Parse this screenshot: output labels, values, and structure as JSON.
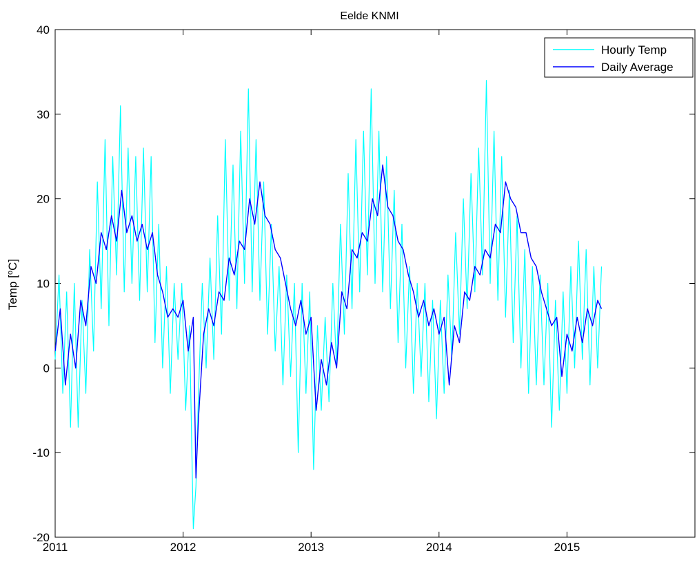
{
  "chart_data": {
    "type": "line",
    "title": "Eelde KNMI",
    "ylabel_prefix": "Temp [",
    "ylabel_sup": "o",
    "ylabel_suffix": "C]",
    "xlabel": "",
    "xlim": [
      2011,
      2016
    ],
    "ylim": [
      -20,
      40
    ],
    "x_ticks": [
      2011,
      2012,
      2013,
      2014,
      2015
    ],
    "x_tick_labels": [
      "2011",
      "2012",
      "2013",
      "2014",
      "2015"
    ],
    "y_ticks": [
      -20,
      -10,
      0,
      10,
      20,
      30,
      40
    ],
    "y_tick_labels": [
      "-20",
      "-10",
      "0",
      "10",
      "20",
      "30",
      "40"
    ],
    "grid": false,
    "legend_position": "top-right",
    "series": [
      {
        "name": "Hourly Temp",
        "color": "#00ffff",
        "x": [
          2011.0,
          2011.03,
          2011.06,
          2011.09,
          2011.12,
          2011.15,
          2011.18,
          2011.21,
          2011.24,
          2011.27,
          2011.3,
          2011.33,
          2011.36,
          2011.39,
          2011.42,
          2011.45,
          2011.48,
          2011.51,
          2011.54,
          2011.57,
          2011.6,
          2011.63,
          2011.66,
          2011.69,
          2011.72,
          2011.75,
          2011.78,
          2011.81,
          2011.84,
          2011.87,
          2011.9,
          2011.93,
          2011.96,
          2011.99,
          2012.02,
          2012.05,
          2012.08,
          2012.1,
          2012.12,
          2012.15,
          2012.18,
          2012.21,
          2012.24,
          2012.27,
          2012.3,
          2012.33,
          2012.36,
          2012.39,
          2012.42,
          2012.45,
          2012.48,
          2012.51,
          2012.54,
          2012.57,
          2012.6,
          2012.63,
          2012.66,
          2012.69,
          2012.72,
          2012.75,
          2012.78,
          2012.81,
          2012.84,
          2012.87,
          2012.9,
          2012.93,
          2012.96,
          2012.99,
          2013.02,
          2013.05,
          2013.08,
          2013.11,
          2013.14,
          2013.17,
          2013.2,
          2013.23,
          2013.26,
          2013.29,
          2013.32,
          2013.35,
          2013.38,
          2013.41,
          2013.44,
          2013.47,
          2013.5,
          2013.53,
          2013.56,
          2013.59,
          2013.62,
          2013.65,
          2013.68,
          2013.71,
          2013.74,
          2013.77,
          2013.8,
          2013.83,
          2013.86,
          2013.89,
          2013.92,
          2013.95,
          2013.98,
          2014.01,
          2014.04,
          2014.07,
          2014.1,
          2014.13,
          2014.16,
          2014.19,
          2014.22,
          2014.25,
          2014.28,
          2014.31,
          2014.34,
          2014.37,
          2014.4,
          2014.43,
          2014.46,
          2014.49,
          2014.52,
          2014.55,
          2014.58,
          2014.61,
          2014.64,
          2014.67,
          2014.7,
          2014.73,
          2014.76,
          2014.79,
          2014.82,
          2014.85,
          2014.88,
          2014.91,
          2014.94,
          2014.97,
          2015.0,
          2015.03,
          2015.06,
          2015.09,
          2015.12,
          2015.15,
          2015.18,
          2015.21,
          2015.24,
          2015.27
        ],
        "y": [
          1,
          11,
          -3,
          9,
          -7,
          10,
          -7,
          8,
          -3,
          14,
          2,
          22,
          7,
          27,
          5,
          25,
          11,
          31,
          9,
          26,
          10,
          25,
          8,
          26,
          9,
          25,
          3,
          17,
          0,
          12,
          -3,
          10,
          1,
          10,
          -5,
          5,
          -19,
          -14,
          -3,
          10,
          0,
          13,
          1,
          18,
          4,
          27,
          8,
          24,
          7,
          28,
          10,
          33,
          9,
          27,
          8,
          22,
          4,
          17,
          2,
          12,
          -2,
          11,
          -1,
          10,
          -10,
          10,
          -3,
          9,
          -12,
          5,
          -5,
          6,
          -4,
          10,
          0,
          17,
          4,
          23,
          7,
          27,
          9,
          28,
          11,
          33,
          10,
          28,
          9,
          25,
          7,
          21,
          3,
          17,
          0,
          12,
          -3,
          10,
          -1,
          10,
          -4,
          8,
          -6,
          8,
          -3,
          11,
          1,
          16,
          4,
          20,
          7,
          23,
          9,
          26,
          11,
          34,
          10,
          28,
          8,
          25,
          6,
          21,
          3,
          18,
          0,
          14,
          -3,
          12,
          -2,
          11,
          -2,
          10,
          -7,
          8,
          -5,
          9,
          -3,
          12,
          0,
          15,
          1,
          14,
          -2,
          12,
          0,
          12
        ],
        "_note": ""
      },
      {
        "name": "Daily Average",
        "color": "#0000ff",
        "x": [
          2011.0,
          2011.04,
          2011.08,
          2011.12,
          2011.16,
          2011.2,
          2011.24,
          2011.28,
          2011.32,
          2011.36,
          2011.4,
          2011.44,
          2011.48,
          2011.52,
          2011.56,
          2011.6,
          2011.64,
          2011.68,
          2011.72,
          2011.76,
          2011.8,
          2011.84,
          2011.88,
          2011.92,
          2011.96,
          2012.0,
          2012.04,
          2012.08,
          2012.1,
          2012.12,
          2012.16,
          2012.2,
          2012.24,
          2012.28,
          2012.32,
          2012.36,
          2012.4,
          2012.44,
          2012.48,
          2012.52,
          2012.56,
          2012.6,
          2012.64,
          2012.68,
          2012.72,
          2012.76,
          2012.8,
          2012.84,
          2012.88,
          2012.92,
          2012.96,
          2013.0,
          2013.04,
          2013.08,
          2013.12,
          2013.16,
          2013.2,
          2013.24,
          2013.28,
          2013.32,
          2013.36,
          2013.4,
          2013.44,
          2013.48,
          2013.52,
          2013.56,
          2013.6,
          2013.64,
          2013.68,
          2013.72,
          2013.76,
          2013.8,
          2013.84,
          2013.88,
          2013.92,
          2013.96,
          2014.0,
          2014.04,
          2014.08,
          2014.12,
          2014.16,
          2014.2,
          2014.24,
          2014.28,
          2014.32,
          2014.36,
          2014.4,
          2014.44,
          2014.48,
          2014.52,
          2014.56,
          2014.6,
          2014.64,
          2014.68,
          2014.72,
          2014.76,
          2014.8,
          2014.84,
          2014.88,
          2014.92,
          2014.96,
          2015.0,
          2015.04,
          2015.08,
          2015.12,
          2015.16,
          2015.2,
          2015.24,
          2015.27
        ],
        "y": [
          2,
          7,
          -2,
          4,
          0,
          8,
          5,
          12,
          10,
          16,
          14,
          18,
          15,
          21,
          16,
          18,
          15,
          17,
          14,
          16,
          11,
          9,
          6,
          7,
          6,
          8,
          2,
          6,
          -13,
          -6,
          4,
          7,
          5,
          9,
          8,
          13,
          11,
          15,
          14,
          20,
          17,
          22,
          18,
          17,
          14,
          13,
          10,
          7,
          5,
          8,
          4,
          6,
          -5,
          1,
          -2,
          3,
          0,
          9,
          7,
          14,
          13,
          16,
          15,
          20,
          18,
          24,
          19,
          18,
          15,
          14,
          11,
          9,
          6,
          8,
          5,
          7,
          4,
          6,
          -2,
          5,
          3,
          9,
          8,
          12,
          11,
          14,
          13,
          17,
          16,
          22,
          20,
          19,
          16,
          16,
          13,
          12,
          9,
          7,
          5,
          6,
          -1,
          4,
          2,
          6,
          3,
          7,
          5,
          8,
          7
        ]
      }
    ]
  }
}
